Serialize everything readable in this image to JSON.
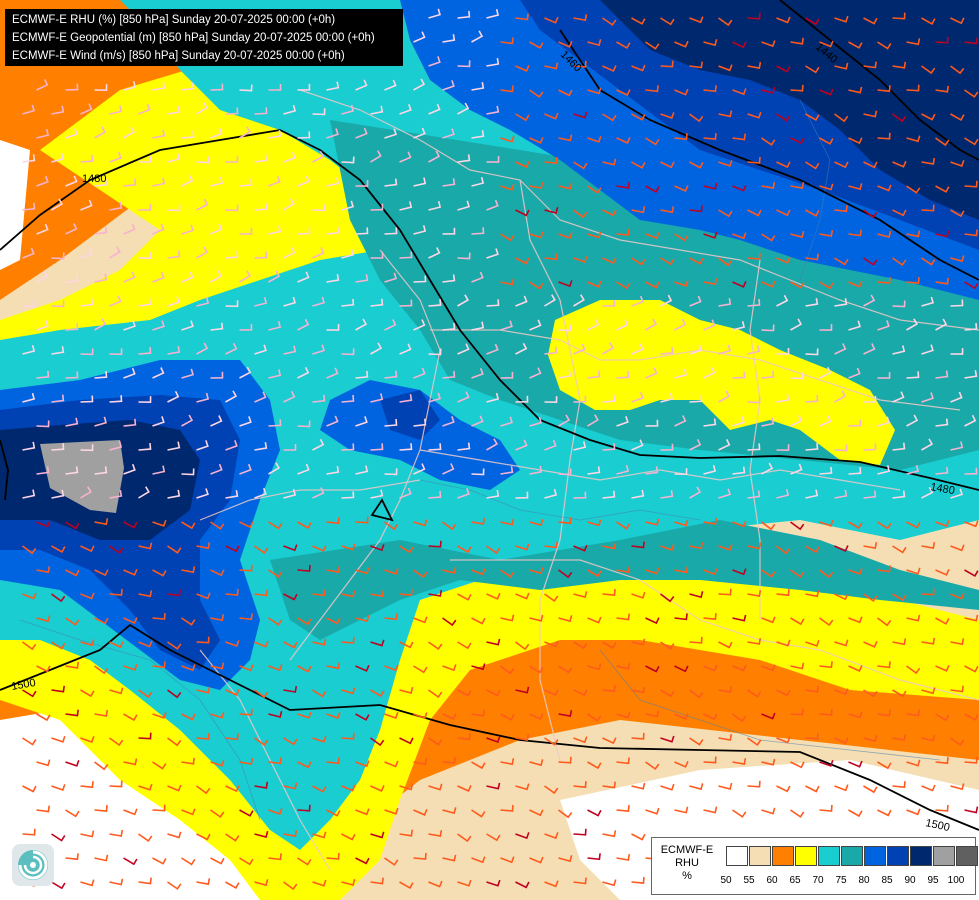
{
  "header": {
    "lines": [
      "ECMWF-E RHU (%) [850 hPa] Sunday 20-07-2025 00:00 (+0h)",
      "ECMWF-E Geopotential (m) [850 hPa] Sunday 20-07-2025 00:00 (+0h)",
      "ECMWF-E Wind (m/s) [850 hPa] Sunday 20-07-2025 00:00 (+0h)"
    ]
  },
  "contours": [
    {
      "label": "1460"
    },
    {
      "label": "1440"
    },
    {
      "label": "1480"
    },
    {
      "label": "1480"
    },
    {
      "label": "1500"
    },
    {
      "label": "1500"
    }
  ],
  "legend": {
    "title": "ECMWF-E",
    "subtitle": "RHU",
    "unit": "%",
    "colors": [
      "#ffffff",
      "#f5deb3",
      "#ff8000",
      "#ffff00",
      "#19cdd1",
      "#19a9a9",
      "#0064e1",
      "#0041b4",
      "#00286e",
      "#a0a0a0",
      "#606060"
    ],
    "ticks": [
      "50",
      "55",
      "60",
      "65",
      "70",
      "75",
      "80",
      "85",
      "90",
      "95",
      "100"
    ]
  },
  "map_colors": {
    "white": "#ffffff",
    "wheat": "#f5deb3",
    "orange": "#ff8000",
    "yellow": "#ffff00",
    "cyan": "#19cdd1",
    "teal": "#19a9a9",
    "blue": "#0064e1",
    "darkblue": "#0041b4",
    "navy": "#00286e",
    "gray": "#a0a0a0"
  },
  "logo": {
    "icon": "ecmwf-swirl-logo"
  }
}
